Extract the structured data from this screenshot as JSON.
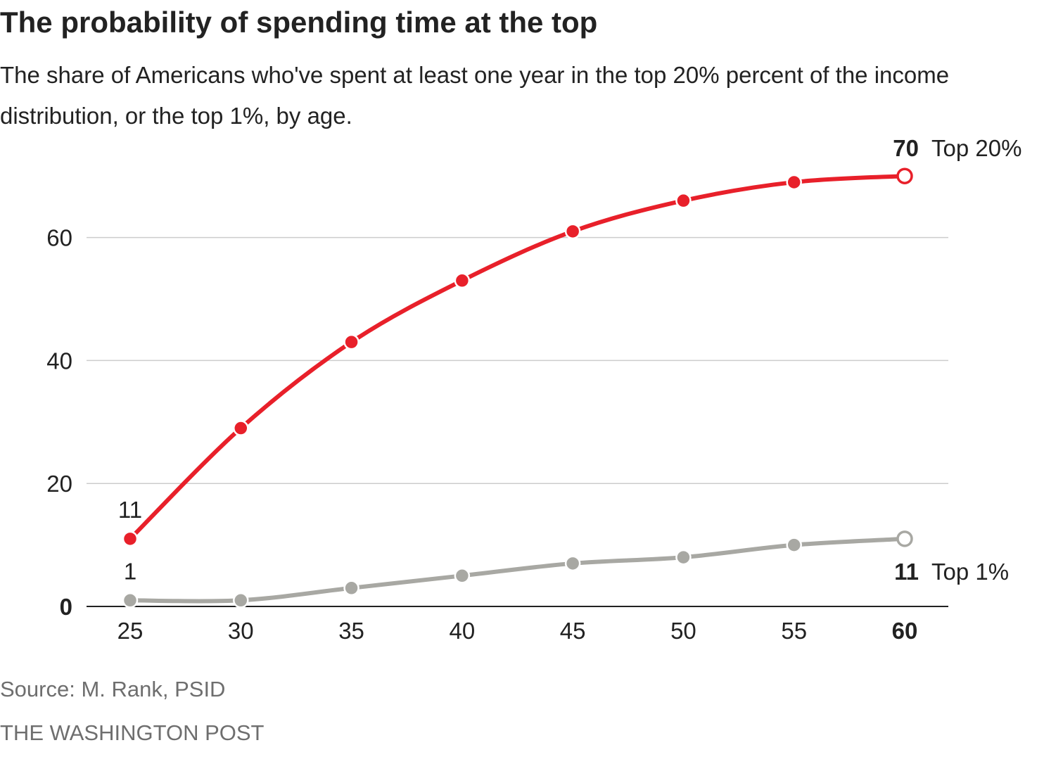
{
  "header": {
    "title": "The probability of spending time at the top",
    "subtitle": "The share of Americans who've spent at least one year in the top 20% percent of the income distribution, or the top 1%, by age."
  },
  "footer": {
    "source": "Source: M. Rank, PSID",
    "credit": "THE WASHINGTON POST"
  },
  "colors": {
    "top20": "#e8202a",
    "top1": "#a8a8a3",
    "grid": "#cccccc",
    "text": "#222222"
  },
  "chart_data": {
    "type": "line",
    "title": "The probability of spending time at the top",
    "subtitle": "The share of Americans who've spent at least one year in the top 20% percent of the income distribution, or the top 1%, by age.",
    "xlabel": "",
    "ylabel": "",
    "x": [
      25,
      30,
      35,
      40,
      45,
      50,
      55,
      60
    ],
    "x_ticks": [
      "25",
      "30",
      "35",
      "40",
      "45",
      "50",
      "55",
      "60"
    ],
    "y_ticks": [
      "0",
      "20",
      "40",
      "60"
    ],
    "ylim": [
      0,
      70
    ],
    "grid": true,
    "series": [
      {
        "name": "Top 20%",
        "values": [
          11,
          29,
          43,
          53,
          61,
          66,
          69,
          70
        ],
        "start_label": "11",
        "end_label": "70"
      },
      {
        "name": "Top 1%",
        "values": [
          1,
          1,
          3,
          5,
          7,
          8,
          10,
          11
        ],
        "start_label": "1",
        "end_label": "11"
      }
    ]
  }
}
